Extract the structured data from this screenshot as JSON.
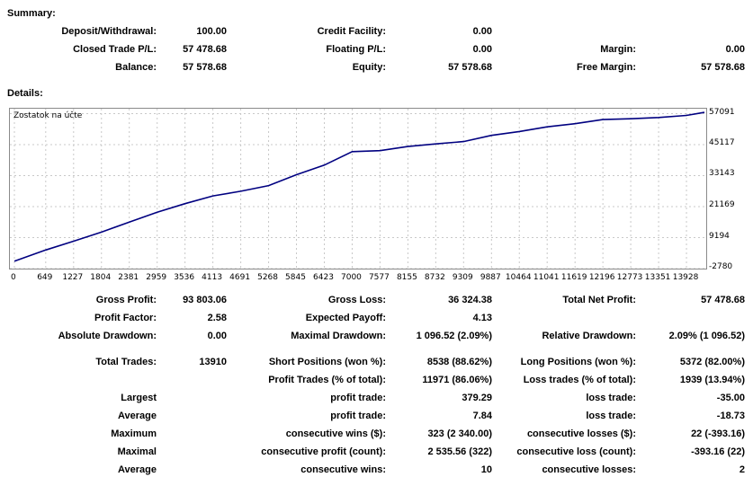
{
  "summary": {
    "heading": "Summary:",
    "deposit_label": "Deposit/Withdrawal:",
    "deposit_value": "100.00",
    "credit_label": "Credit Facility:",
    "credit_value": "0.00",
    "closed_label": "Closed Trade P/L:",
    "closed_value": "57 478.68",
    "floating_label": "Floating P/L:",
    "floating_value": "0.00",
    "margin_label": "Margin:",
    "margin_value": "0.00",
    "balance_label": "Balance:",
    "balance_value": "57 578.68",
    "equity_label": "Equity:",
    "equity_value": "57 578.68",
    "free_margin_label": "Free Margin:",
    "free_margin_value": "57 578.68"
  },
  "details": {
    "heading": "Details:"
  },
  "chart_data": {
    "type": "line",
    "title": "Zostatok na účte",
    "xlim": [
      0,
      14300
    ],
    "ylim": [
      -2780,
      59000
    ],
    "y_ticks": [
      "57091",
      "45117",
      "33143",
      "21169",
      "9194",
      "-2780"
    ],
    "y_tick_values": [
      57091,
      45117,
      33143,
      21169,
      9194,
      -2780
    ],
    "x_ticks": [
      "0",
      "649",
      "1227",
      "1804",
      "2381",
      "2959",
      "3536",
      "4113",
      "4691",
      "5268",
      "5845",
      "6423",
      "7000",
      "7577",
      "8155",
      "8732",
      "9309",
      "9887",
      "10464",
      "11041",
      "11619",
      "12196",
      "12773",
      "13351",
      "13928"
    ],
    "x_tick_values": [
      0,
      649,
      1227,
      1804,
      2381,
      2959,
      3536,
      4113,
      4691,
      5268,
      5845,
      6423,
      7000,
      7577,
      8155,
      8732,
      9309,
      9887,
      10464,
      11041,
      11619,
      12196,
      12773,
      13351,
      13928
    ],
    "grid": true,
    "line_color": "#000080",
    "series": [
      {
        "x": [
          0,
          649,
          1227,
          1804,
          2381,
          2959,
          3536,
          4113,
          4691,
          5268,
          5845,
          6423,
          7000,
          7577,
          8155,
          8732,
          9309,
          9887,
          10464,
          11041,
          11619,
          12196,
          12773,
          13351,
          13928,
          14300
        ],
        "y": [
          100,
          4400,
          7800,
          11300,
          15200,
          19000,
          22300,
          25300,
          27100,
          29300,
          33500,
          37200,
          42400,
          42800,
          44400,
          45400,
          46300,
          48700,
          50200,
          52000,
          53200,
          54800,
          55100,
          55600,
          56400,
          57578
        ]
      }
    ]
  },
  "stats": {
    "gross_profit_label": "Gross Profit:",
    "gross_profit_value": "93 803.06",
    "gross_loss_label": "Gross Loss:",
    "gross_loss_value": "36 324.38",
    "total_net_label": "Total Net Profit:",
    "total_net_value": "57 478.68",
    "profit_factor_label": "Profit Factor:",
    "profit_factor_value": "2.58",
    "expected_payoff_label": "Expected Payoff:",
    "expected_payoff_value": "4.13",
    "abs_dd_label": "Absolute Drawdown:",
    "abs_dd_value": "0.00",
    "max_dd_label": "Maximal Drawdown:",
    "max_dd_value": "1 096.52 (2.09%)",
    "rel_dd_label": "Relative Drawdown:",
    "rel_dd_value": "2.09% (1 096.52)",
    "total_trades_label": "Total Trades:",
    "total_trades_value": "13910",
    "short_label": "Short Positions (won %):",
    "short_value": "8538 (88.62%)",
    "long_label": "Long Positions (won %):",
    "long_value": "5372 (82.00%)",
    "profit_trades_label": "Profit Trades (% of total):",
    "profit_trades_value": "11971 (86.06%)",
    "loss_trades_label": "Loss trades (% of total):",
    "loss_trades_value": "1939 (13.94%)",
    "largest_label": "Largest",
    "largest_profit_label": "profit trade:",
    "largest_profit_value": "379.29",
    "largest_loss_label": "loss trade:",
    "largest_loss_value": "-35.00",
    "average_label": "Average",
    "average_profit_label": "profit trade:",
    "average_profit_value": "7.84",
    "average_loss_label": "loss trade:",
    "average_loss_value": "-18.73",
    "maximum_label": "Maximum",
    "max_cons_wins_label": "consecutive wins ($):",
    "max_cons_wins_value": "323 (2 340.00)",
    "max_cons_losses_label": "consecutive losses ($):",
    "max_cons_losses_value": "22 (-393.16)",
    "maximal_label": "Maximal",
    "maximal_cons_profit_label": "consecutive profit (count):",
    "maximal_cons_profit_value": "2 535.56 (322)",
    "maximal_cons_loss_label": "consecutive loss (count):",
    "maximal_cons_loss_value": "-393.16 (22)",
    "average2_label": "Average",
    "avg_cons_wins_label": "consecutive wins:",
    "avg_cons_wins_value": "10",
    "avg_cons_losses_label": "consecutive losses:",
    "avg_cons_losses_value": "2"
  }
}
